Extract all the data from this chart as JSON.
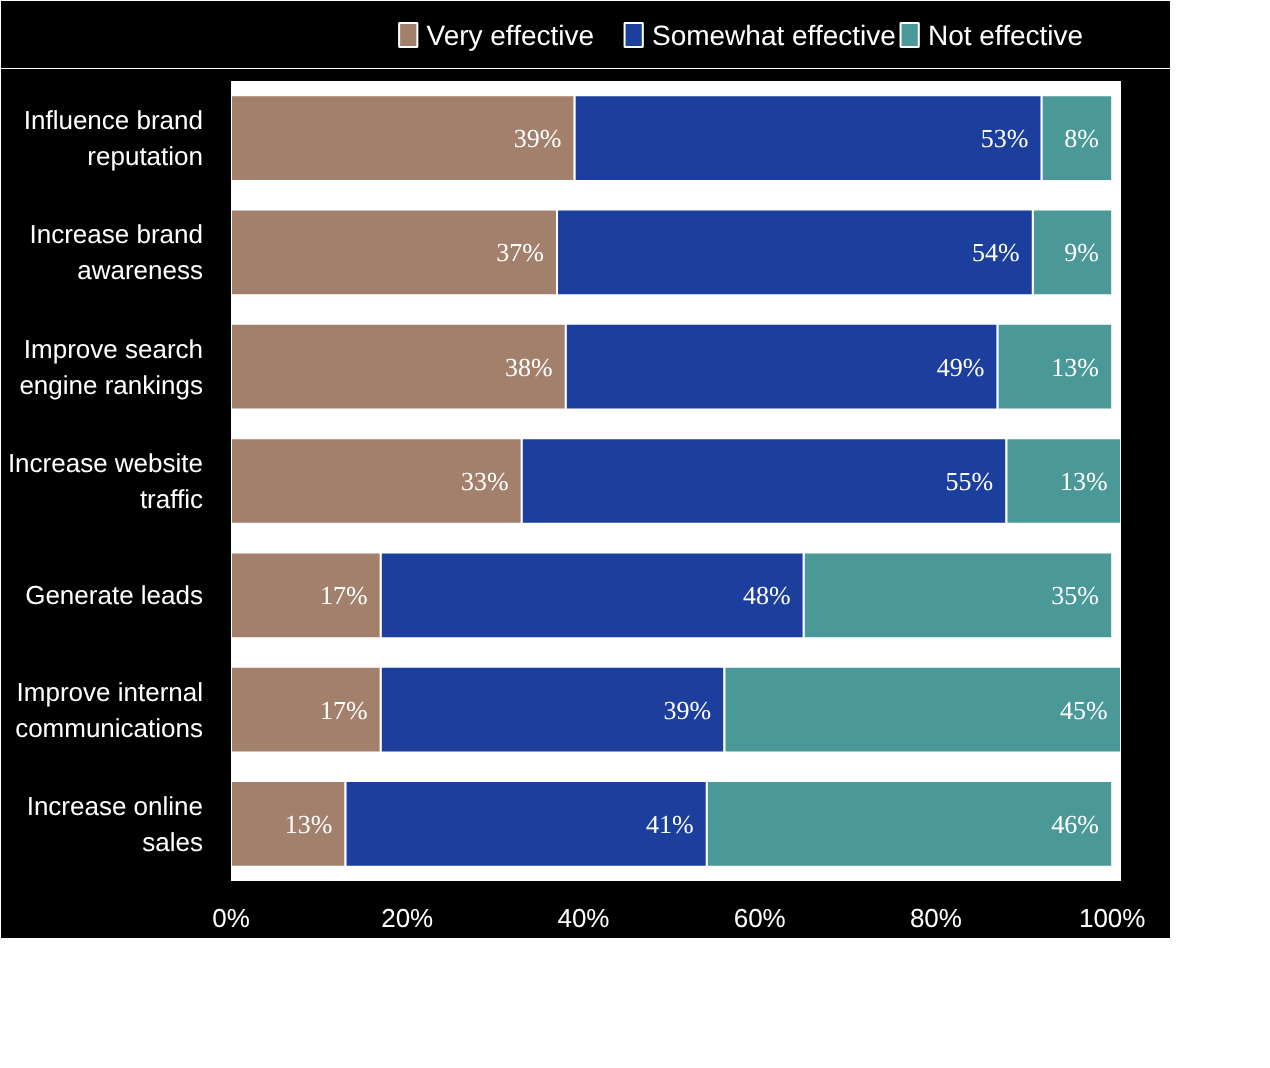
{
  "chart_data": {
    "type": "bar",
    "orientation": "horizontal",
    "stacked": true,
    "categories": [
      "Influence brand\nreputation",
      "Increase brand\nawareness",
      "Improve search\nengine rankings",
      "Increase website\ntraffic",
      "Generate leads",
      "Improve internal\ncommunications",
      "Increase online\nsales"
    ],
    "series": [
      {
        "name": "Very effective",
        "color": "#a2806c",
        "values": [
          39,
          37,
          38,
          33,
          17,
          17,
          13
        ],
        "value_labels": [
          "39%",
          "37%",
          "38%",
          "33%",
          "17%",
          "17%",
          "13%"
        ]
      },
      {
        "name": "Somewhat effective",
        "color": "#1c3f9e",
        "values": [
          53,
          54,
          49,
          55,
          48,
          39,
          41
        ],
        "value_labels": [
          "53%",
          "54%",
          "49%",
          "55%",
          "48%",
          "39%",
          "41%"
        ]
      },
      {
        "name": "Not effective",
        "color": "#4b9898",
        "values": [
          8,
          9,
          13,
          13,
          35,
          45,
          46
        ],
        "value_labels": [
          "8%",
          "9%",
          "13%",
          "13%",
          "35%",
          "45%",
          "46%"
        ]
      }
    ],
    "xlim": [
      0,
      101
    ],
    "xticks": [
      {
        "value": 0,
        "label": "0%"
      },
      {
        "value": 20,
        "label": "20%"
      },
      {
        "value": 40,
        "label": "40%"
      },
      {
        "value": 60,
        "label": "60%"
      },
      {
        "value": 80,
        "label": "80%"
      },
      {
        "value": 100,
        "label": "100%"
      }
    ],
    "legend": "top",
    "grid": false
  }
}
